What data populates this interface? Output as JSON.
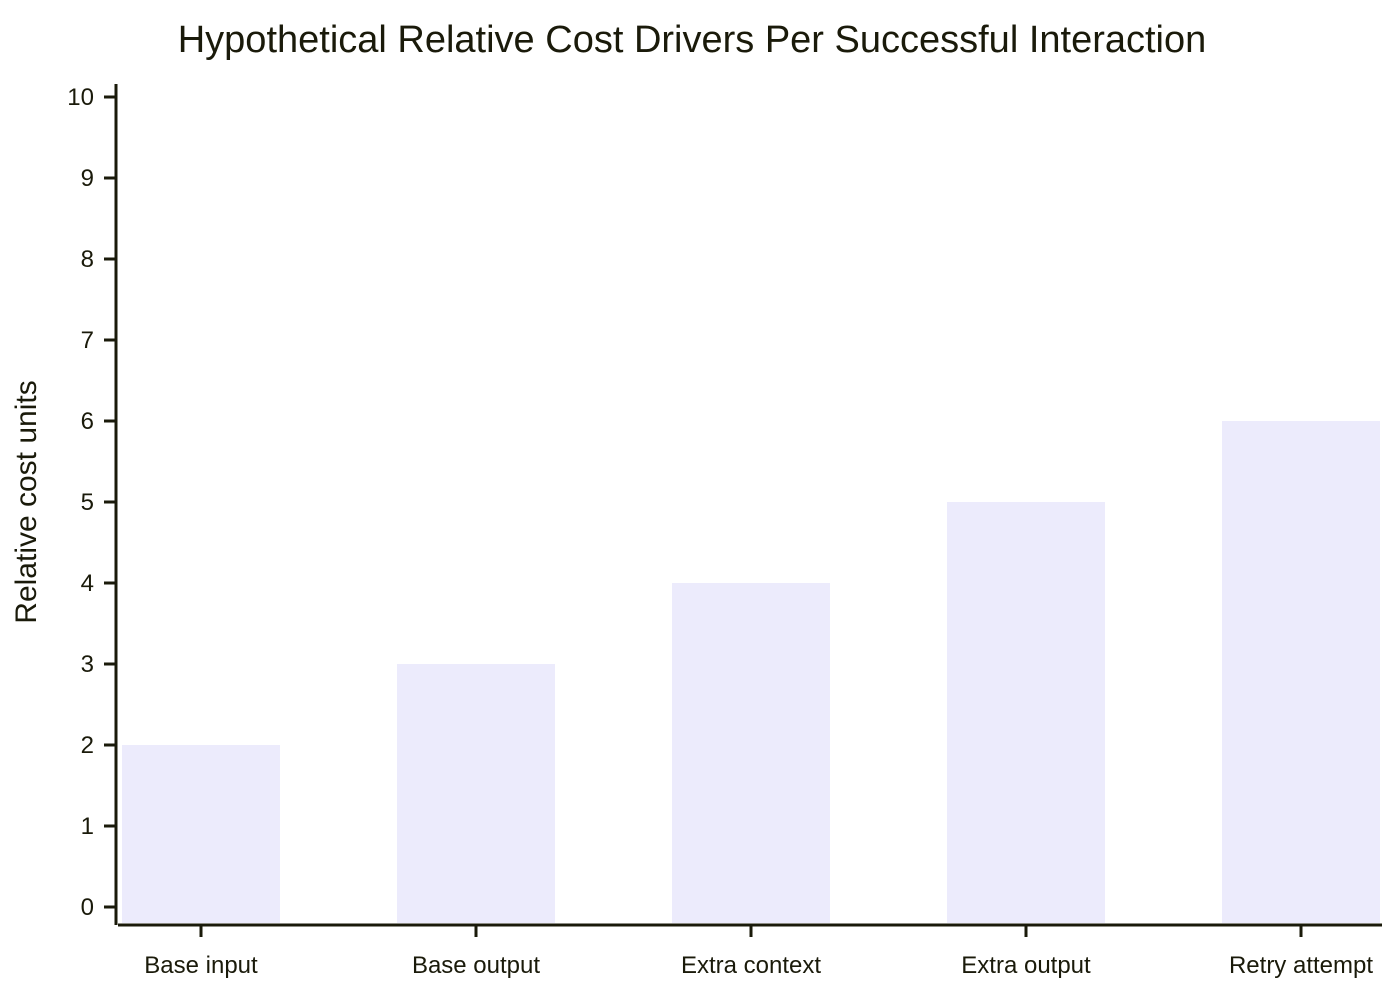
{
  "chart_data": {
    "type": "bar",
    "title": "Hypothetical Relative Cost Drivers Per Successful Interaction",
    "xlabel": "",
    "ylabel": "Relative cost units",
    "categories": [
      "Base input",
      "Base output",
      "Extra context",
      "Extra output",
      "Retry attempt"
    ],
    "values": [
      2,
      3,
      4,
      5,
      6
    ],
    "ylim": [
      0,
      10
    ],
    "yticks": [
      0,
      1,
      2,
      3,
      4,
      5,
      6,
      7,
      8,
      9,
      10
    ],
    "grid": false,
    "legend": "none",
    "bar_color": "#ecebfc",
    "axis_color": "#1a1a0a"
  }
}
